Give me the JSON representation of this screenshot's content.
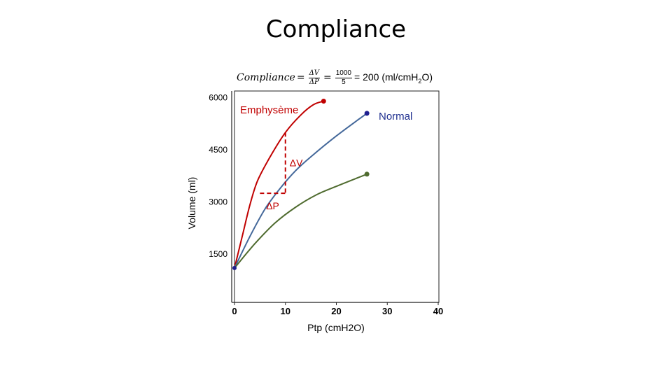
{
  "title": "Compliance",
  "formula": {
    "lhs": "Compliance",
    "eq": "=",
    "frac1_num": "ΔV",
    "frac1_den": "ΔP",
    "frac2_num": "1000",
    "frac2_den": "5",
    "result_prefix": "= 200 (ml/cmH",
    "result_sub": "2",
    "result_suffix": "O)"
  },
  "chart_data": {
    "type": "line",
    "xlabel": "Ptp (cmH2O)",
    "ylabel": "Volume (ml)",
    "xlim": [
      0,
      40
    ],
    "ylim": [
      0,
      6000
    ],
    "xticks": [
      0,
      10,
      20,
      30,
      40
    ],
    "yticks": [
      1500,
      3000,
      4500,
      6000
    ],
    "grid": false,
    "series": [
      {
        "name": "Emphysème",
        "color": "#c00000",
        "points": [
          [
            0,
            1100
          ],
          [
            1.5,
            2000
          ],
          [
            3,
            2900
          ],
          [
            4.5,
            3600
          ],
          [
            7,
            4300
          ],
          [
            10,
            5000
          ],
          [
            13,
            5500
          ],
          [
            15.5,
            5800
          ],
          [
            17.5,
            5900
          ]
        ]
      },
      {
        "name": "Normal",
        "color": "#44689a",
        "marker_color": "#1f1f8f",
        "points": [
          [
            0,
            1100
          ],
          [
            3,
            2000
          ],
          [
            6,
            2800
          ],
          [
            9,
            3400
          ],
          [
            12,
            3900
          ],
          [
            15,
            4300
          ],
          [
            20,
            4900
          ],
          [
            26,
            5550
          ]
        ]
      },
      {
        "name": "",
        "color": "#4f6b2f",
        "points": [
          [
            0,
            1100
          ],
          [
            4,
            1800
          ],
          [
            8,
            2400
          ],
          [
            12,
            2850
          ],
          [
            16,
            3200
          ],
          [
            20,
            3450
          ],
          [
            26,
            3800
          ]
        ]
      }
    ],
    "annotations": {
      "delta_v": "ΔV",
      "delta_p": "ΔP",
      "bracket": {
        "x_start": 5,
        "x_end": 10,
        "y_low": 3250,
        "y_high": 5000,
        "color": "#c00000"
      }
    }
  }
}
